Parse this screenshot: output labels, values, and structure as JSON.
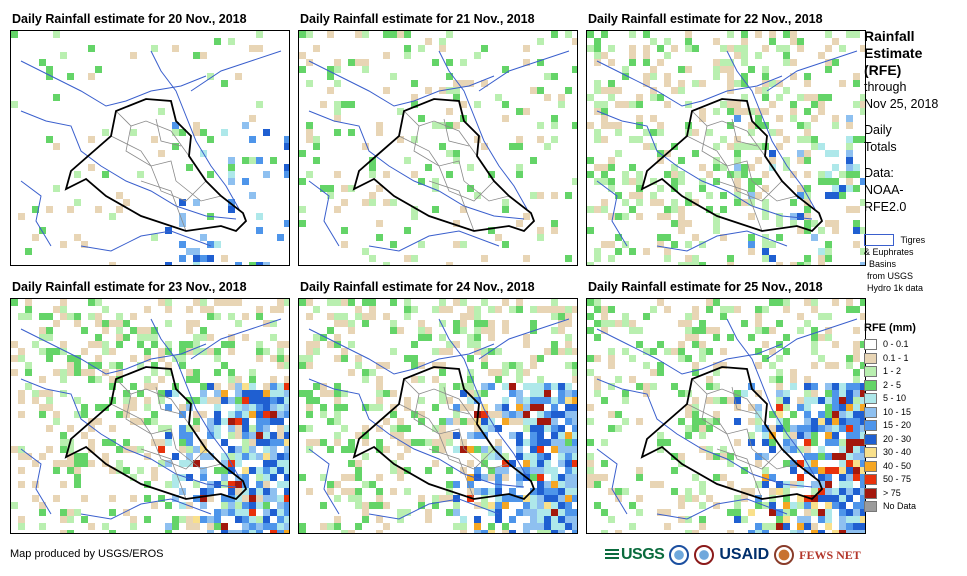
{
  "panels": [
    {
      "title": "Daily Rainfall estimate for 20 Nov., 2018",
      "wetness": 0.2,
      "storm": 0.15,
      "extreme": 0.0
    },
    {
      "title": "Daily Rainfall estimate for 21 Nov., 2018",
      "wetness": 0.35,
      "storm": 0.0,
      "extreme": 0.0
    },
    {
      "title": "Daily Rainfall estimate for 22 Nov., 2018",
      "wetness": 0.8,
      "storm": 0.1,
      "extreme": 0.0
    },
    {
      "title": "Daily Rainfall estimate for 23 Nov., 2018",
      "wetness": 0.85,
      "storm": 0.75,
      "extreme": 0.3
    },
    {
      "title": "Daily Rainfall estimate for 24 Nov., 2018",
      "wetness": 0.85,
      "storm": 0.8,
      "extreme": 0.45
    },
    {
      "title": "Daily Rainfall estimate for 25 Nov., 2018",
      "wetness": 0.7,
      "storm": 0.85,
      "extreme": 0.7
    }
  ],
  "legend": {
    "title_lines": [
      "Rainfall",
      "Estimate",
      "(RFE)"
    ],
    "through_lines": [
      "through",
      "Nov 25, 2018"
    ],
    "totals_lines": [
      "Daily",
      "Totals"
    ],
    "data_lines": [
      "Data:",
      "NOAA-",
      "RFE2.0"
    ],
    "basin_label": "Tigres",
    "basin_desc_lines": [
      "& Euphrates",
      "Basins",
      "from USGS",
      "Hydro 1k data"
    ],
    "rfe_title": "RFE (mm)",
    "classes": [
      {
        "label": "0 - 0.1",
        "color": "#ffffff"
      },
      {
        "label": "0.1 - 1",
        "color": "#e8d5b5"
      },
      {
        "label": "1 - 2",
        "color": "#b9efb0"
      },
      {
        "label": "2 - 5",
        "color": "#64d468"
      },
      {
        "label": "5 - 10",
        "color": "#aee8ea"
      },
      {
        "label": "10 - 15",
        "color": "#8ec0f0"
      },
      {
        "label": "15 - 20",
        "color": "#4e95ea"
      },
      {
        "label": "20 - 30",
        "color": "#1f5fd1"
      },
      {
        "label": "30 - 40",
        "color": "#f9e08b"
      },
      {
        "label": "40 - 50",
        "color": "#f5a623"
      },
      {
        "label": "50 - 75",
        "color": "#e8320c"
      },
      {
        "label": "> 75",
        "color": "#a3180d"
      },
      {
        "label": "No Data",
        "color": "#9b9b9b"
      }
    ]
  },
  "footer": {
    "credit": "Map produced by USGS/EROS",
    "logos": [
      "USGS",
      "NOAA",
      "USAID",
      "FEWS NET"
    ]
  }
}
